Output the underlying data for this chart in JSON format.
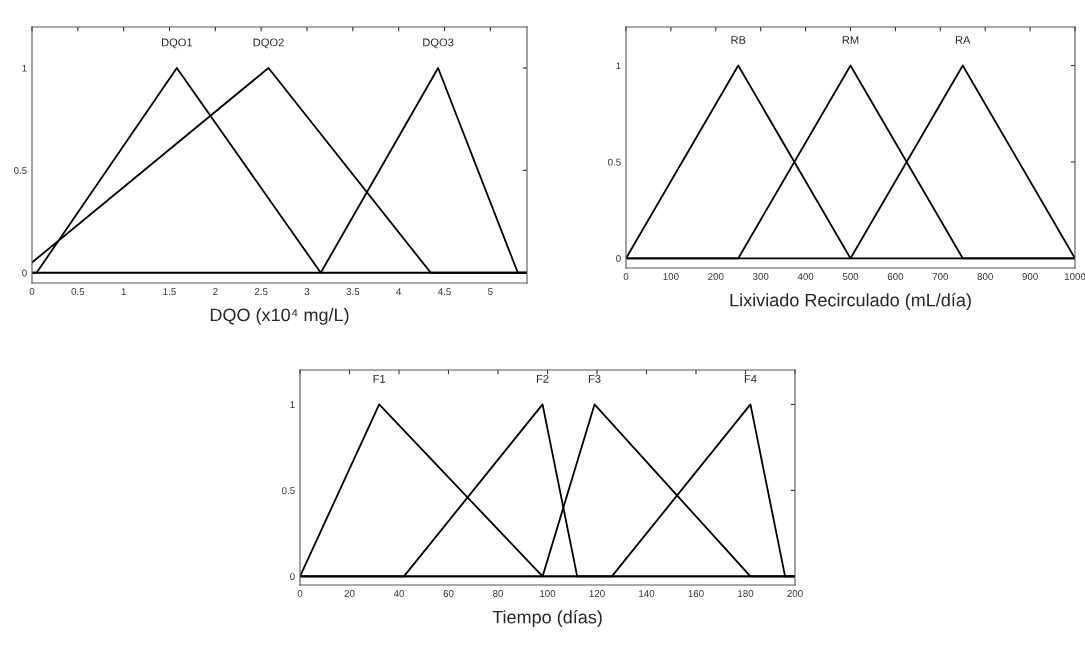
{
  "chart_data": [
    {
      "type": "line",
      "xlabel": "DQO (x10⁴ mg/L)",
      "xlim": [
        0,
        5.4
      ],
      "ylim": [
        -0.05,
        1.2
      ],
      "xticks": [
        0,
        0.5,
        1,
        1.5,
        2,
        2.5,
        3,
        3.5,
        4,
        4.5,
        5
      ],
      "yticks": [
        0,
        0.5,
        1
      ],
      "grid": false,
      "legend": false,
      "line_style": "solid",
      "marker": "none",
      "series": [
        {
          "name": "DQO1",
          "color": "#000000",
          "x": [
            0,
            0.05,
            1.58,
            3.15,
            5.4
          ],
          "values": [
            0,
            0,
            1,
            0,
            0
          ]
        },
        {
          "name": "DQO2",
          "color": "#000000",
          "x": [
            0,
            2.58,
            4.35,
            5.4
          ],
          "values": [
            0.05,
            1,
            0,
            0
          ]
        },
        {
          "name": "DQO3",
          "color": "#000000",
          "x": [
            0,
            3.15,
            4.43,
            5.3,
            5.4
          ],
          "values": [
            0,
            0,
            1,
            0,
            0
          ]
        }
      ]
    },
    {
      "type": "line",
      "xlabel": "Lixiviado Recirculado (mL/día)",
      "xlim": [
        0,
        1000
      ],
      "ylim": [
        -0.05,
        1.2
      ],
      "xticks": [
        0,
        100,
        200,
        300,
        400,
        500,
        600,
        700,
        800,
        900,
        1000
      ],
      "yticks": [
        0,
        0.5,
        1
      ],
      "grid": false,
      "legend": false,
      "line_style": "solid",
      "marker": "none",
      "series": [
        {
          "name": "RB",
          "color": "#000000",
          "x": [
            0,
            250,
            500,
            1000
          ],
          "values": [
            0,
            1,
            0,
            0
          ]
        },
        {
          "name": "RM",
          "color": "#000000",
          "x": [
            0,
            250,
            500,
            750,
            1000
          ],
          "values": [
            0,
            0,
            1,
            0,
            0
          ]
        },
        {
          "name": "RA",
          "color": "#000000",
          "x": [
            0,
            500,
            750,
            1000
          ],
          "values": [
            0,
            0,
            1,
            0
          ]
        }
      ]
    },
    {
      "type": "line",
      "xlabel": "Tiempo (días)",
      "xlim": [
        0,
        200
      ],
      "ylim": [
        -0.05,
        1.2
      ],
      "xticks": [
        0,
        20,
        40,
        60,
        80,
        100,
        120,
        140,
        160,
        180,
        200
      ],
      "yticks": [
        0,
        0.5,
        1
      ],
      "grid": false,
      "legend": false,
      "line_style": "solid",
      "marker": "none",
      "series": [
        {
          "name": "F1",
          "color": "#000000",
          "x": [
            0,
            32,
            98,
            200
          ],
          "values": [
            0,
            1,
            0,
            0
          ]
        },
        {
          "name": "F2",
          "color": "#000000",
          "x": [
            0,
            42,
            98,
            112,
            200
          ],
          "values": [
            0,
            0,
            1,
            0,
            0
          ]
        },
        {
          "name": "F3",
          "color": "#000000",
          "x": [
            0,
            98,
            119,
            182,
            200
          ],
          "values": [
            0,
            0,
            1,
            0,
            0
          ]
        },
        {
          "name": "F4",
          "color": "#000000",
          "x": [
            0,
            126,
            182,
            196,
            200
          ],
          "values": [
            0,
            0,
            1,
            0,
            0
          ]
        }
      ]
    }
  ]
}
